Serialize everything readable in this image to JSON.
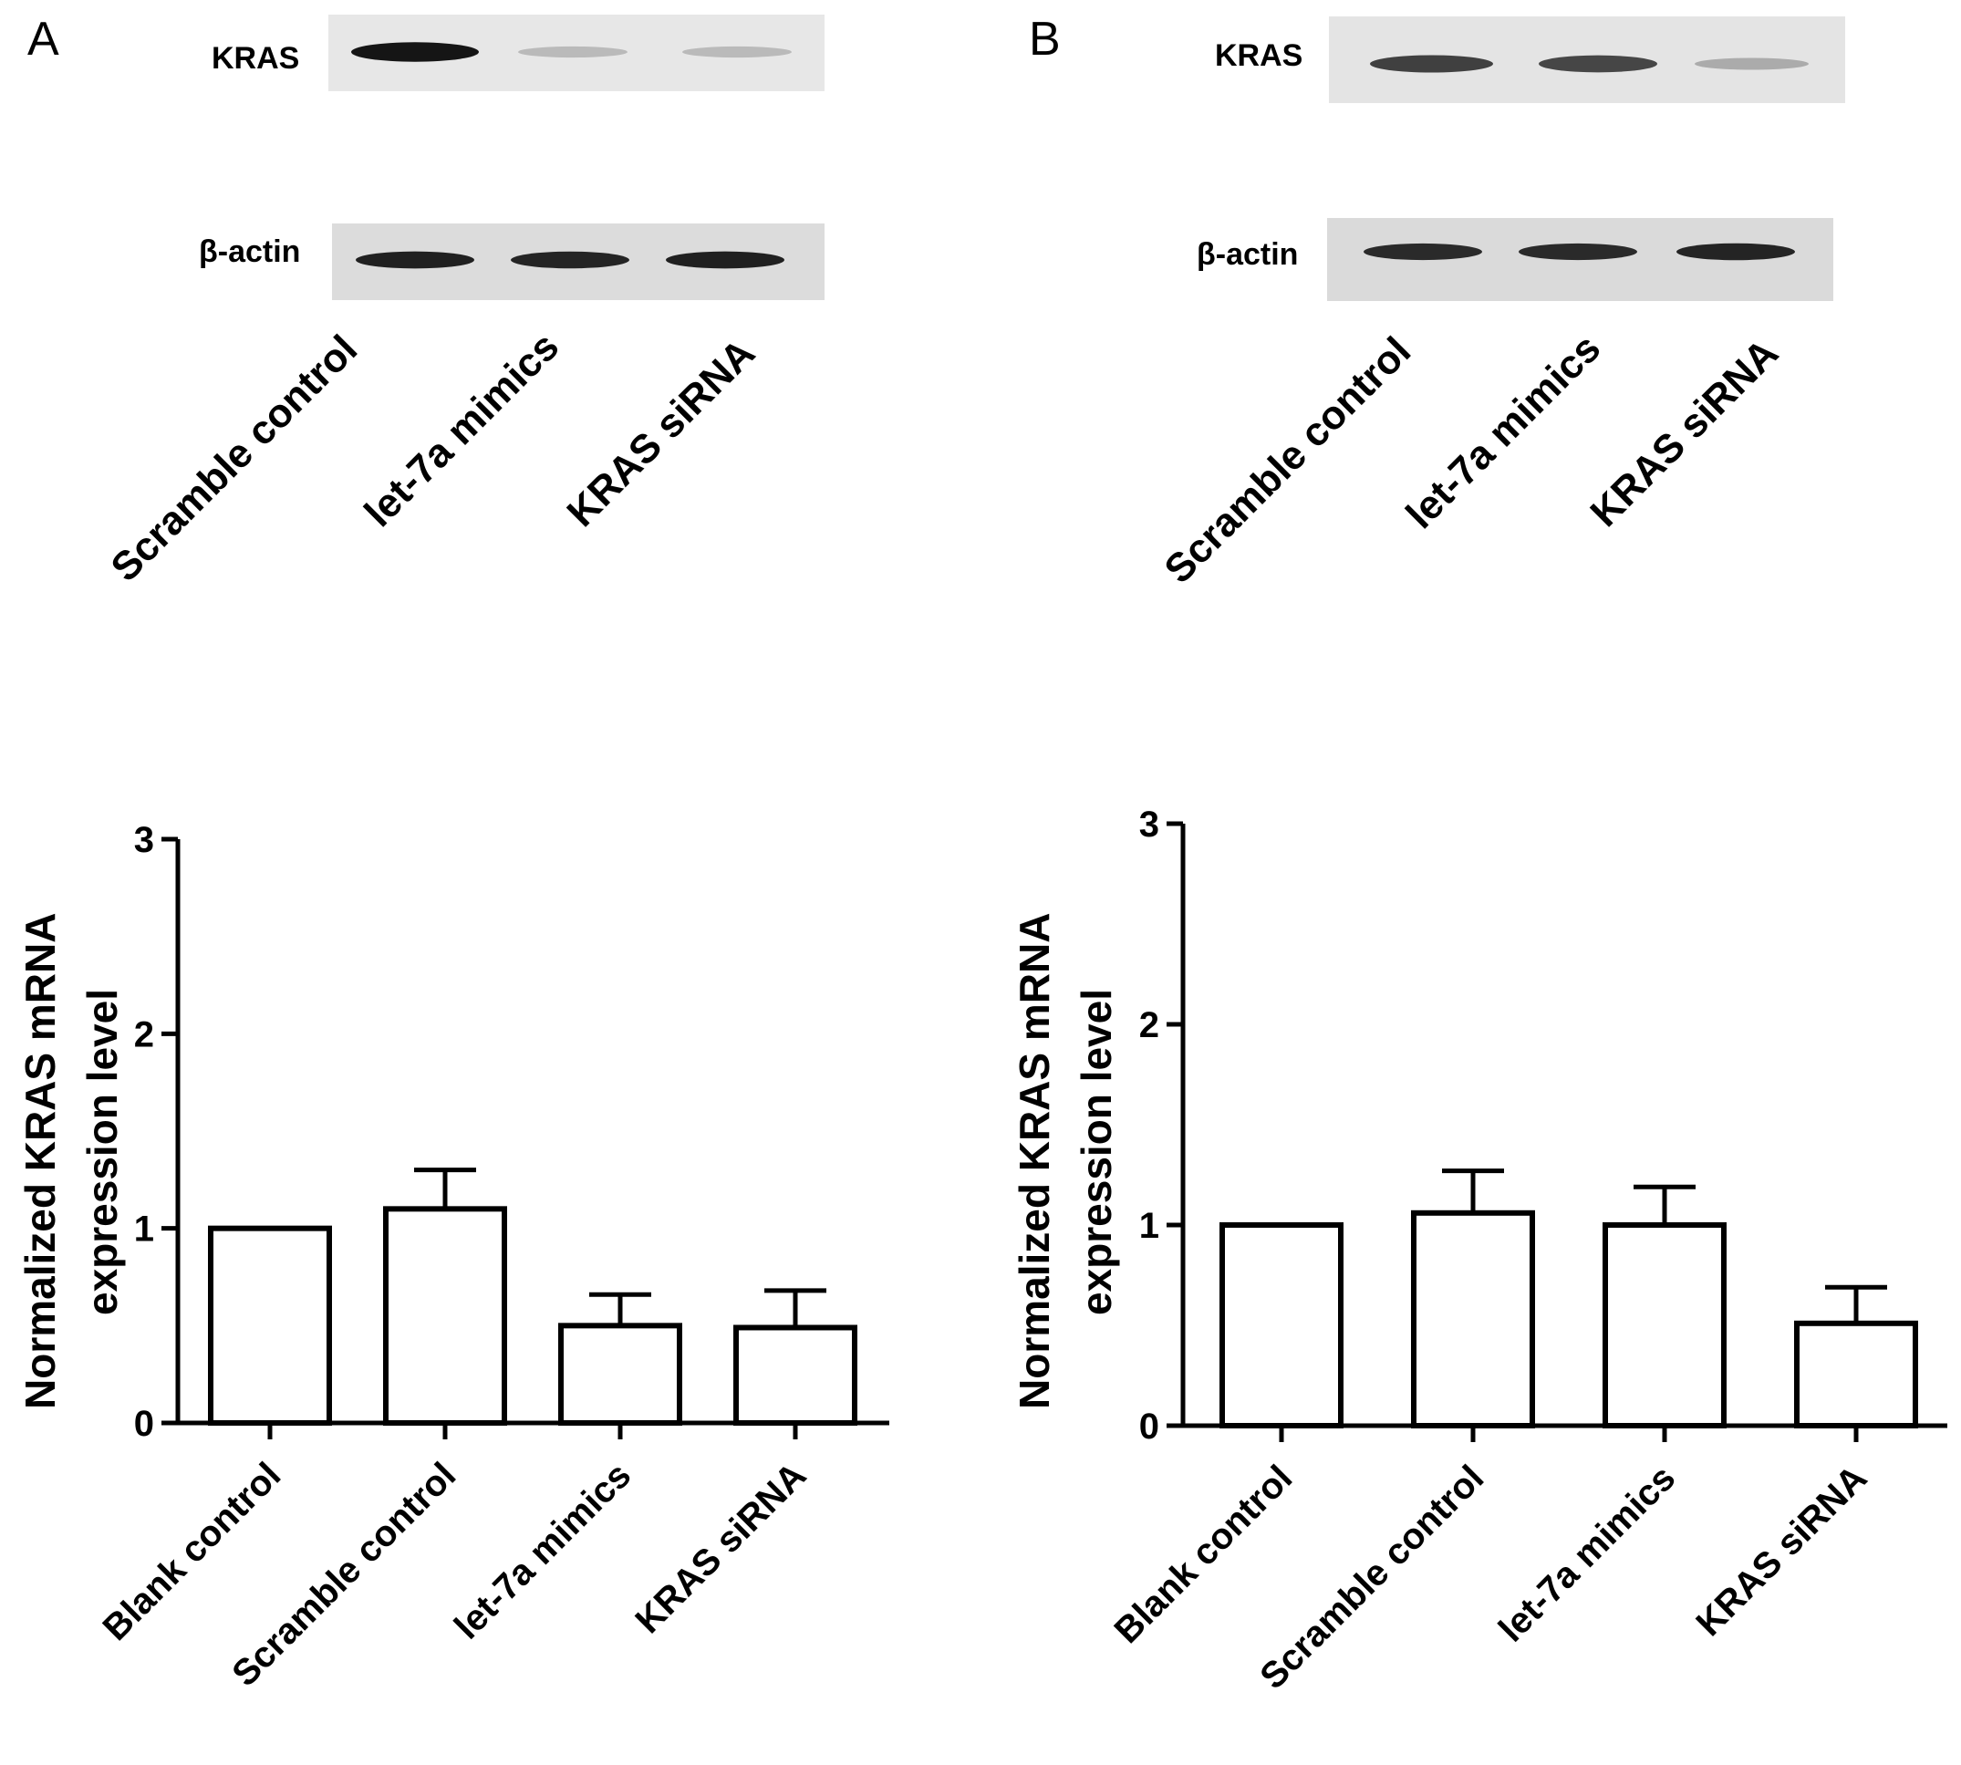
{
  "panels": [
    {
      "letter": "A",
      "blot": {
        "rows": [
          {
            "label": "KRAS",
            "band_intensity": [
              0.95,
              0.18,
              0.18
            ]
          },
          {
            "label": "β-actin",
            "band_intensity": [
              0.9,
              0.88,
              0.9
            ]
          }
        ],
        "lanes": [
          "Scramble control",
          "let-7a mimics",
          "KRAS siRNA"
        ]
      }
    },
    {
      "letter": "B",
      "blot": {
        "rows": [
          {
            "label": "KRAS",
            "band_intensity": [
              0.75,
              0.72,
              0.25
            ]
          },
          {
            "label": "β-actin",
            "band_intensity": [
              0.85,
              0.85,
              0.88
            ]
          }
        ],
        "lanes": [
          "Scramble control",
          "let-7a mimics",
          "KRAS siRNA"
        ]
      }
    }
  ],
  "chart_data": [
    {
      "type": "bar",
      "categories": [
        "Blank control",
        "Scramble control",
        "let-7a mimics",
        "KRAS siRNA"
      ],
      "values": [
        1.0,
        1.1,
        0.5,
        0.49
      ],
      "error_upper": [
        null,
        0.2,
        0.16,
        0.19
      ],
      "ylabel_line1": "Normalized KRAS mRNA",
      "ylabel_line2": "expression level",
      "ylim": [
        0,
        3
      ],
      "yticks": [
        "0",
        "1",
        "2",
        "3"
      ],
      "bar_fill": "#ffffff",
      "bar_stroke": "#000000"
    },
    {
      "type": "bar",
      "categories": [
        "Blank control",
        "Scramble control",
        "let-7a mimics",
        "KRAS siRNA"
      ],
      "values": [
        1.0,
        1.06,
        1.0,
        0.51
      ],
      "error_upper": [
        null,
        0.21,
        0.19,
        0.18
      ],
      "ylabel_line1": "Normalized KRAS mRNA",
      "ylabel_line2": "expression level",
      "ylim": [
        0,
        3
      ],
      "yticks": [
        "0",
        "1",
        "2",
        "3"
      ],
      "bar_fill": "#ffffff",
      "bar_stroke": "#000000"
    }
  ]
}
